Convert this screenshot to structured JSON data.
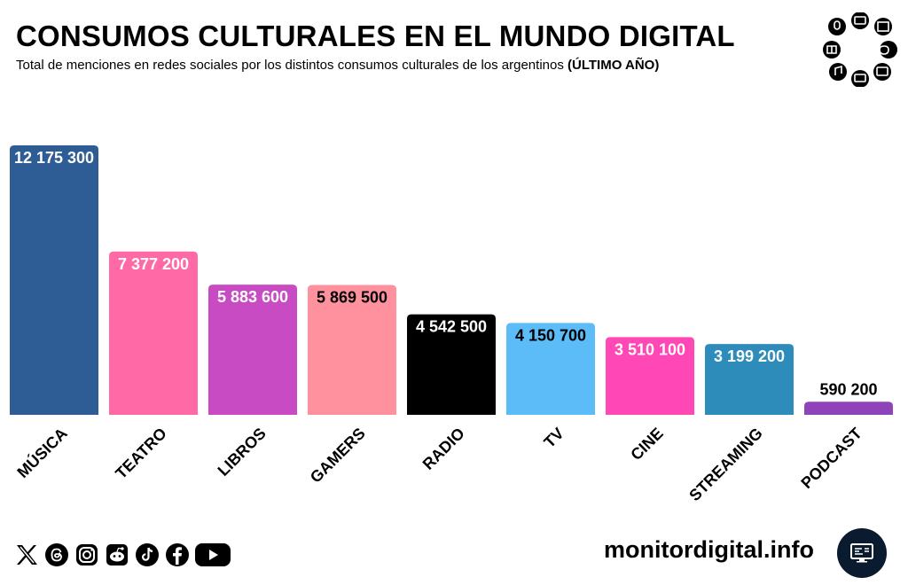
{
  "header": {
    "title": "CONSUMOS CULTURALES EN EL MUNDO DIGITAL",
    "subtitle": "Total de menciones en redes sociales por los distintos consumos culturales de los argentinos",
    "subtitle_bold": "(ÚLTIMO AÑO)"
  },
  "chart_data": {
    "type": "bar",
    "title": "CONSUMOS CULTURALES EN EL MUNDO DIGITAL",
    "xlabel": "",
    "ylabel": "",
    "ylim": [
      0,
      12175300
    ],
    "grid": false,
    "categories": [
      "MÚSICA",
      "TEATRO",
      "LIBROS",
      "GAMERS",
      "RADIO",
      "TV",
      "CINE",
      "STREAMING",
      "PODCAST"
    ],
    "values": [
      12175300,
      7377200,
      5883600,
      5869500,
      4542500,
      4150700,
      3510100,
      3199200,
      590200
    ],
    "labels": [
      "12 175 300",
      "7 377 200",
      "5 883 600",
      "5 869 500",
      "4 542 500",
      "4 150 700",
      "3 510 100",
      "3 199 200",
      "590 200"
    ],
    "colors": [
      "#2e5d95",
      "#ff6aa6",
      "#c94bc4",
      "#ff919f",
      "#000000",
      "#5bbcf7",
      "#ff47b5",
      "#2e8cbb",
      "#8e44b8"
    ],
    "label_colors": [
      "#ffffff",
      "#ffffff",
      "#ffffff",
      "#000000",
      "#ffffff",
      "#000000",
      "#ffffff",
      "#ffffff",
      "#000000"
    ]
  },
  "footer": {
    "social_icons": [
      "x-icon",
      "threads-icon",
      "instagram-icon",
      "reddit-icon",
      "tiktok-icon",
      "facebook-icon",
      "youtube-icon"
    ],
    "brand": "monitordigital.info",
    "brand_icon": "monitor-icon"
  },
  "theme": {
    "background": "#ffffff",
    "text": "#000000",
    "badge": "#0a1a2f"
  }
}
